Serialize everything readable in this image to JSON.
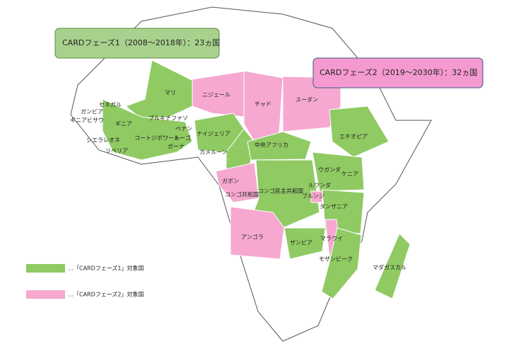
{
  "callouts": {
    "phase1": "CARDフェーズ1（2008〜2018年）：23ヵ国",
    "phase2": "CARDフェーズ2（2019〜2030年）：32ヵ国"
  },
  "legend": [
    "…「CARDフェーズ1」対象国",
    "…「CARDフェーズ2」対象国"
  ],
  "countries": [
    "マリ",
    "ニジェール",
    "チャド",
    "スーダン",
    "セネガル",
    "ガンビア",
    "ギニアビサウ",
    "ギニア",
    "ブルキナファソ",
    "シエラレオネ",
    "コートジボワール",
    "ベナン",
    "トーゴ",
    "ガーナ",
    "リベリア",
    "ナイジェリア",
    "カメルーン",
    "中央アフリカ",
    "エチオピア",
    "ウガンダ",
    "ケニア",
    "ガボン",
    "コンゴ共和国",
    "コンゴ民主共和国",
    "ルワンダ",
    "ブルンジ",
    "タンザニア",
    "アンゴラ",
    "ザンビア",
    "マラウイ",
    "モザンビーク",
    "マダガスカル"
  ]
}
